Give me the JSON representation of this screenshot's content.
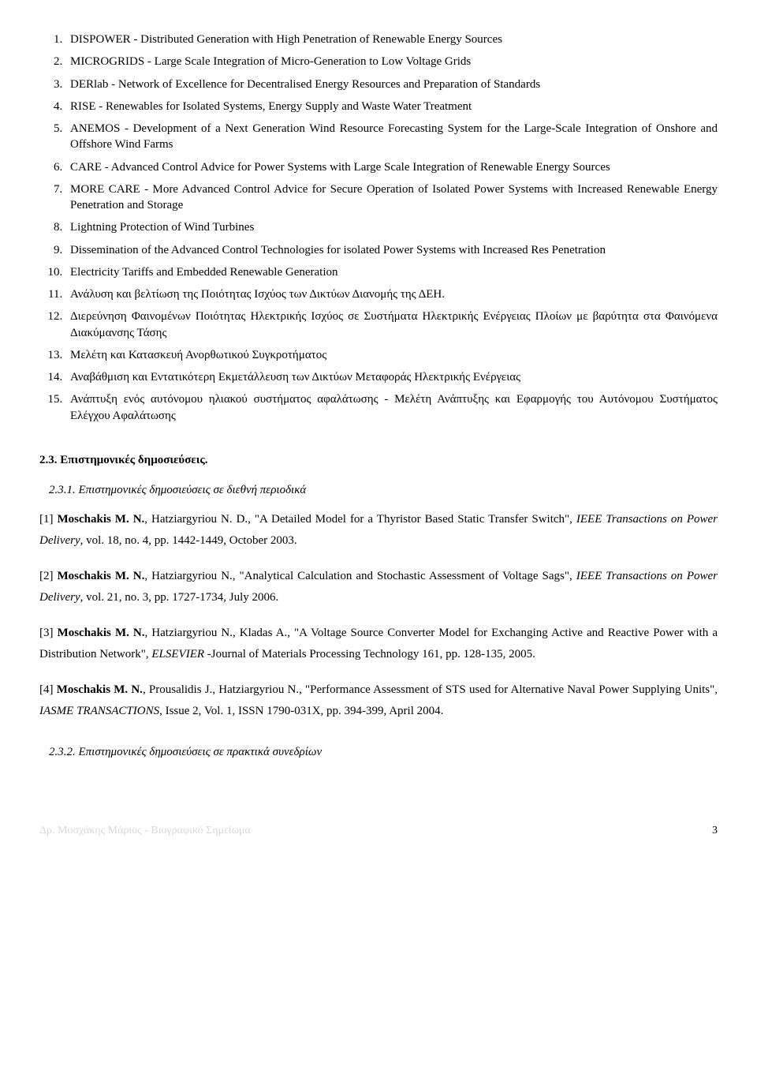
{
  "projects": [
    "DISPOWER - Distributed Generation with High Penetration of Renewable Energy Sources",
    "MICROGRIDS - Large Scale Integration of Micro-Generation to Low Voltage Grids",
    "DERlab - Network of Excellence for Decentralised Energy Resources and Preparation of Standards",
    "RISE - Renewables for Isolated Systems, Energy Supply and Waste Water Treatment",
    "ANEMOS - Development of a Next Generation Wind Resource Forecasting System for the Large-Scale Integration of Onshore and Offshore Wind Farms",
    "CARE - Advanced Control Advice for Power Systems with Large Scale Integration of Renewable Energy Sources",
    "MORE CARE - More Advanced Control Advice for Secure Operation of Isolated Power Systems with Increased Renewable Energy Penetration and Storage",
    "Lightning Protection of Wind Turbines",
    "Dissemination of the Advanced Control Technologies for isolated Power Systems with Increased Res Penetration",
    "Electricity Tariffs and Embedded Renewable Generation",
    "Ανάλυση και βελτίωση της Ποιότητας Ισχύος των Δικτύων Διανομής της ΔΕΗ.",
    "Διερεύνηση Φαινομένων Ποιότητας Ηλεκτρικής Ισχύος σε Συστήματα Ηλεκτρικής Ενέργειας Πλοίων με βαρύτητα στα Φαινόμενα Διακύμανσης Τάσης",
    "Μελέτη και Κατασκευή Ανορθωτικού Συγκροτήματος",
    "Αναβάθμιση και Εντατικότερη Εκμετάλλευση των Δικτύων Μεταφοράς Ηλεκτρικής Ενέργειας",
    "Ανάπτυξη ενός αυτόνομου ηλιακού συστήματος αφαλάτωσης - Μελέτη Ανάπτυξης και Εφαρμογής του Αυτόνομου Συστήματος Ελέγχου Αφαλάτωσης"
  ],
  "section_title": "2.3. Επιστημονικές δημοσιεύσεις.",
  "subsection1": "2.3.1. Επιστημονικές δημοσιεύσεις σε διεθνή περιοδικά",
  "pubs": [
    {
      "n": "[1]",
      "lead": "Moschakis M. N.",
      "rest1": ", Hatziargyriou N. D., \"A Detailed Model for a Thyristor Based Static Transfer Switch\", ",
      "ital": "IEEE Transactions on Power Delivery",
      "rest2": ", vol. 18, no. 4, pp. 1442-1449, October 2003."
    },
    {
      "n": "[2]",
      "lead": "Moschakis M. N.",
      "rest1": ", Hatziargyriou N., \"Analytical Calculation and Stochastic Assessment of Voltage Sags\", ",
      "ital": "IEEE Transactions on Power Delivery",
      "rest2": ", vol. 21, no. 3, pp. 1727-1734, July 2006."
    },
    {
      "n": "[3]",
      "lead": "Moschakis M. N.",
      "rest1": ", Hatziargyriou N., Kladas A., \"A Voltage Source Converter Model for Exchanging Active and Reactive Power with a Distribution Network\", ",
      "ital": "ELSEVIER",
      "rest2": " -Journal of Materials Processing Technology 161, pp. 128-135, 2005."
    },
    {
      "n": "[4]",
      "lead": "Moschakis M. N.",
      "rest1": ", Prousalidis J., Hatziargyriou N., \"Performance Assessment of STS used for Alternative Naval Power Supplying Units\", ",
      "ital": "IASME TRANSACTIONS",
      "rest2": ", Issue 2, Vol. 1, ISSN 1790-031X, pp. 394-399, April 2004."
    }
  ],
  "subsection2": "2.3.2. Επιστημονικές δημοσιεύσεις σε πρακτικά συνεδρίων",
  "footer_left": "Δρ. Μοσχάκης Μάριος - Βιογραφικό Σημείωμα",
  "footer_page": "3"
}
